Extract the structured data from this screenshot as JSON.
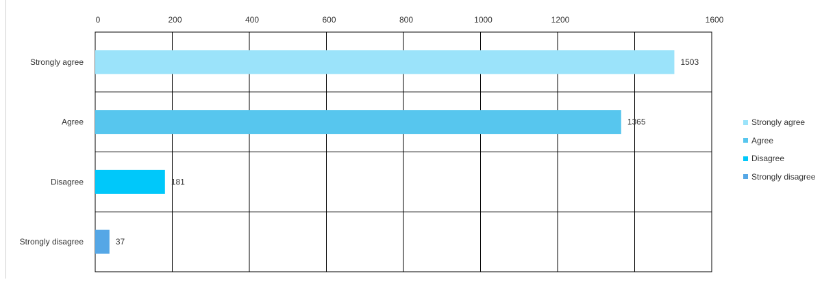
{
  "chart_data": {
    "type": "bar",
    "orientation": "horizontal",
    "categories": [
      "Strongly agree",
      "Agree",
      "Disagree",
      "Strongly disagree"
    ],
    "values": [
      1503,
      1365,
      181,
      37
    ],
    "colors": [
      "#9BE3FA",
      "#57C6EE",
      "#00C8FA",
      "#55A7E6"
    ],
    "x_ticks": [
      "0",
      "200",
      "400",
      "600",
      "800",
      "1000",
      "1200",
      "1600"
    ],
    "xlim": [
      0,
      1600
    ],
    "x_axis_position": "top",
    "grid": true,
    "legend": {
      "placement": "right",
      "entries": [
        "Strongly agree",
        "Agree",
        "Disagree",
        "Strongly disagree"
      ]
    },
    "title": "",
    "xlabel": "",
    "ylabel": ""
  }
}
